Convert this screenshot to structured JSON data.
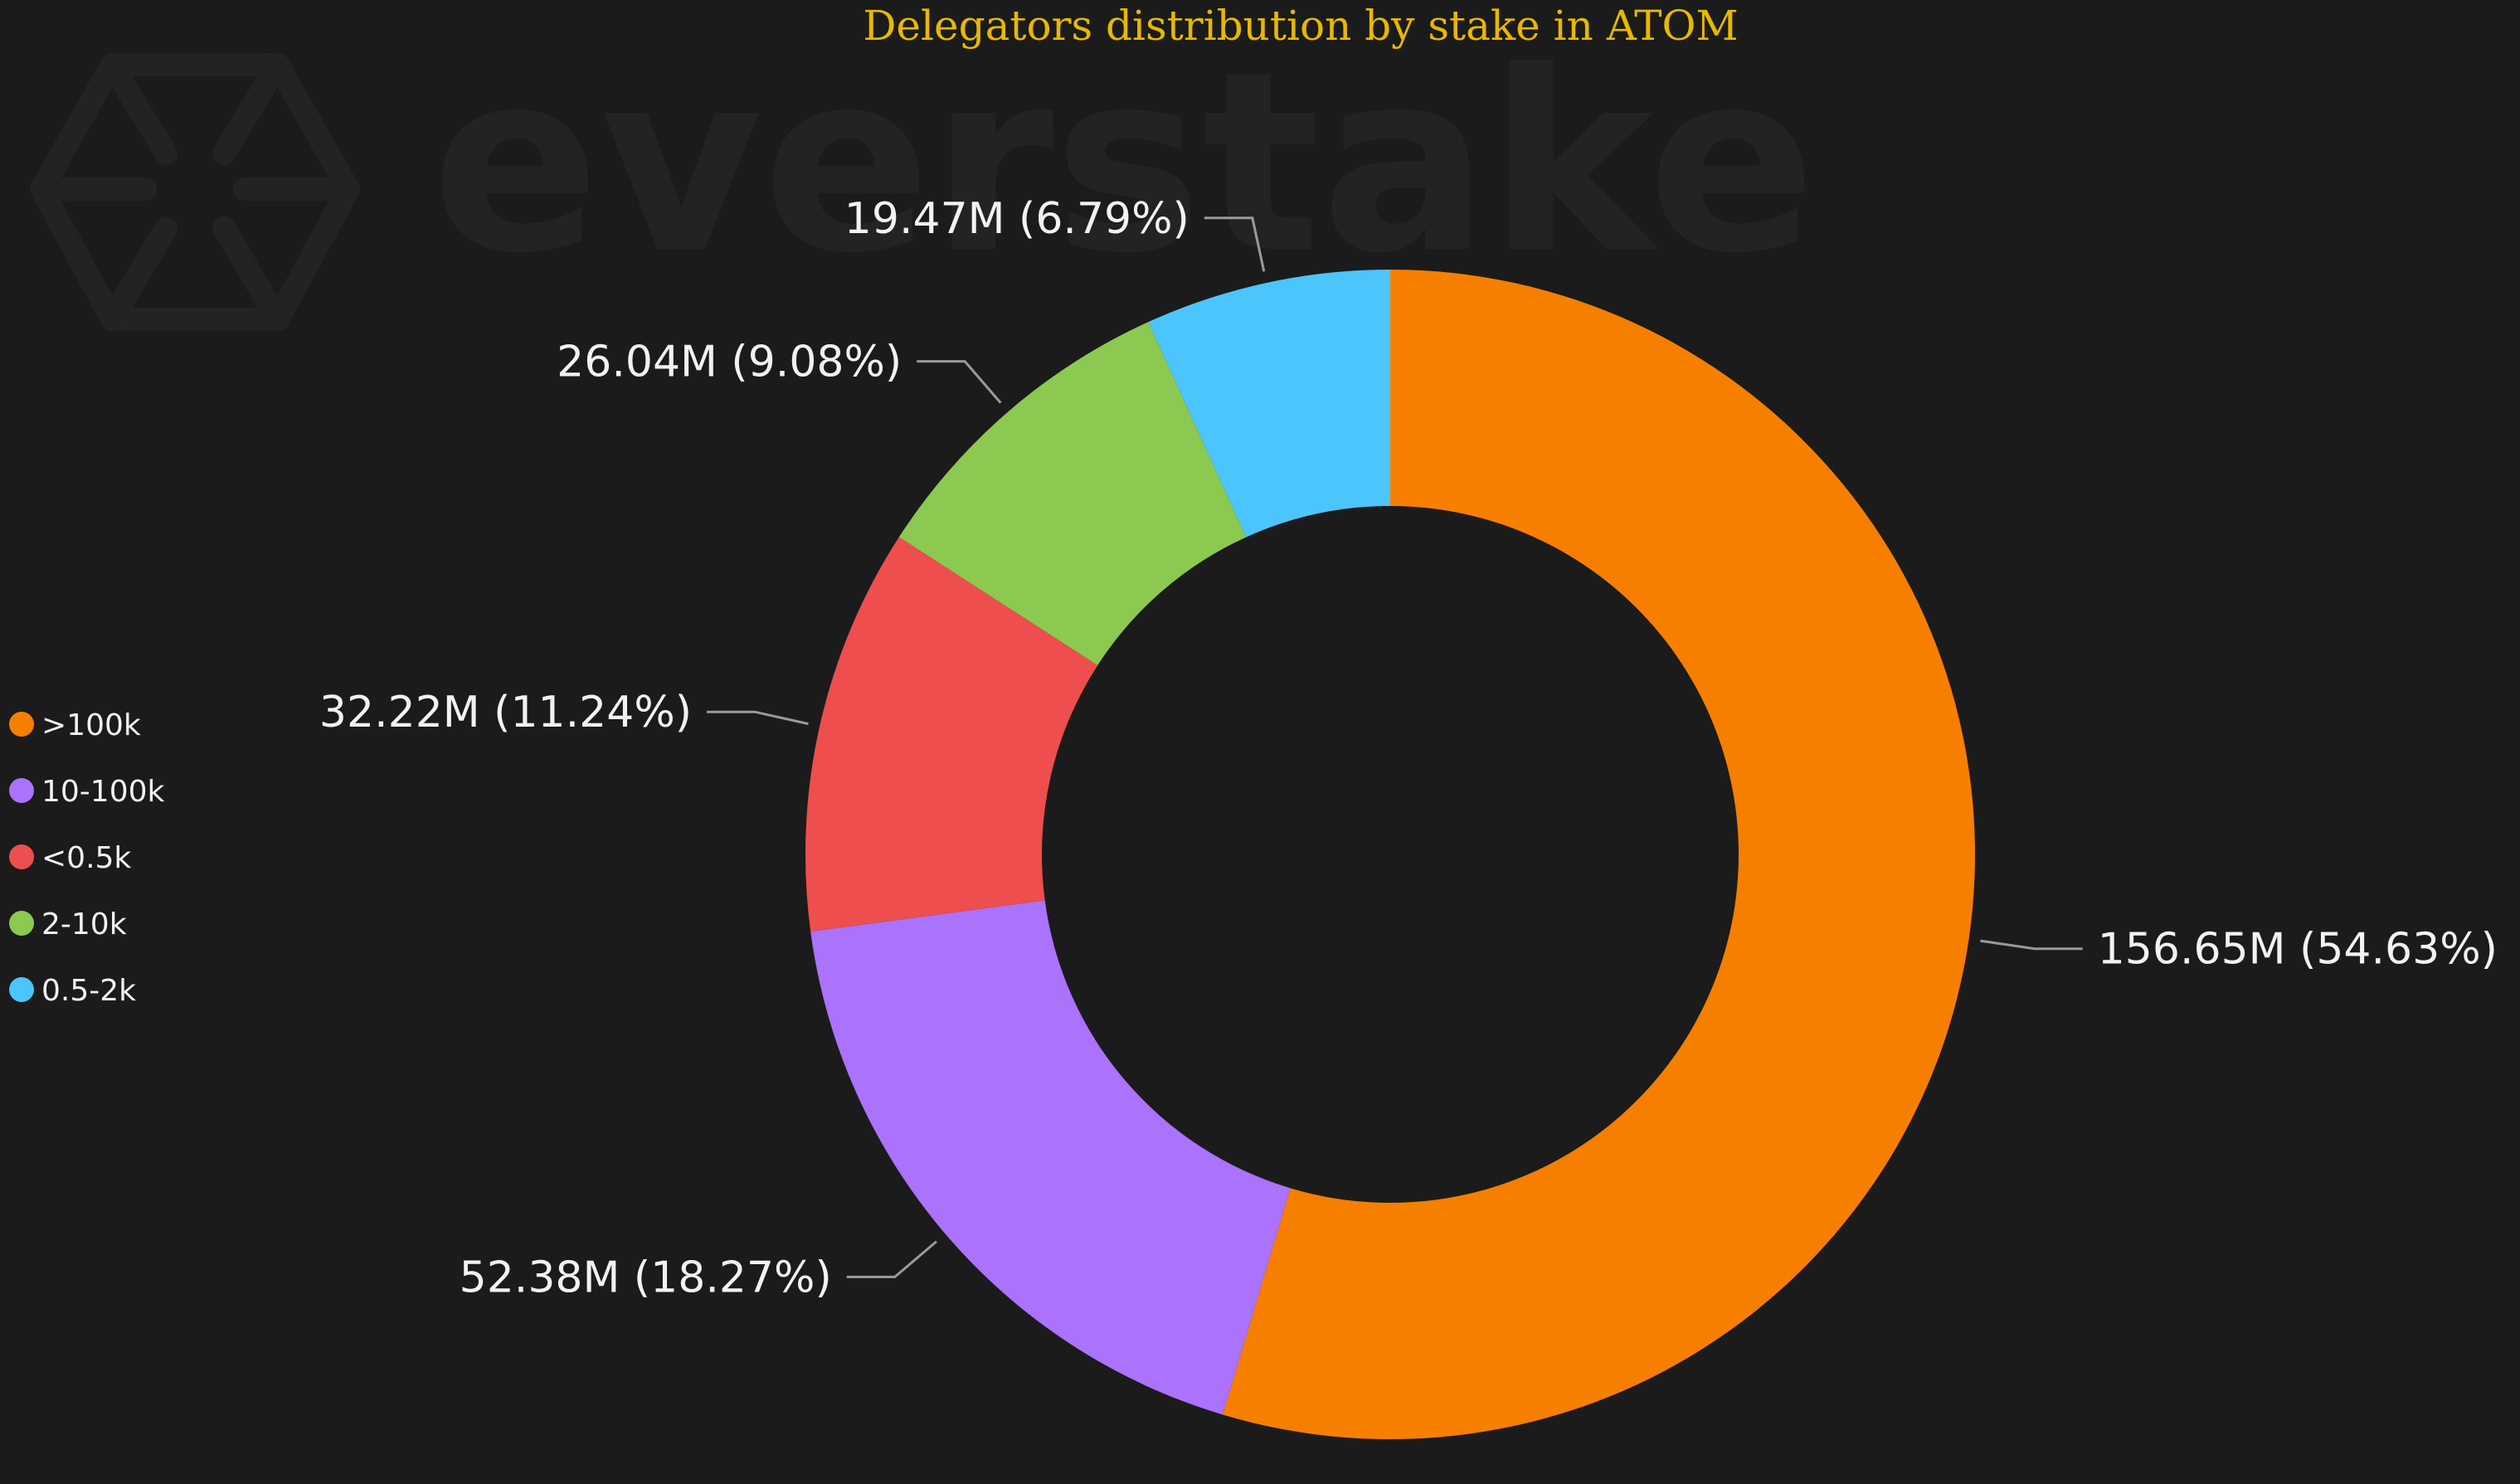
{
  "colors": {
    "background": "#1b1b1b",
    "title": "#e8b800",
    "label_text": "#f2f2f2",
    "leader_line": "#9a9a9a",
    "watermark": "#232323"
  },
  "watermark": {
    "text": "everstake",
    "icon": "everstake-hexagon-logo-icon"
  },
  "chart_data": {
    "type": "pie",
    "donut": true,
    "title": "Delegators distribution by stake in ATOM",
    "unit": "ATOM",
    "legend_position": "left",
    "legend": [
      {
        "label": ">100k",
        "color": "#f77f00"
      },
      {
        "label": "10-100k",
        "color": "#ab72fc"
      },
      {
        "label": "<0.5k",
        "color": "#ee4e4e"
      },
      {
        "label": "2-10k",
        "color": "#8cc950"
      },
      {
        "label": "0.5-2k",
        "color": "#4cc5fd"
      }
    ],
    "slices": [
      {
        "label": ">100k",
        "value": 156.65,
        "display": "156.65M (54.63%)",
        "percent": 54.63,
        "color": "#f77f00"
      },
      {
        "label": "10-100k",
        "value": 52.38,
        "display": "52.38M (18.27%)",
        "percent": 18.27,
        "color": "#ab72fc"
      },
      {
        "label": "<0.5k",
        "value": 32.22,
        "display": "32.22M (11.24%)",
        "percent": 11.24,
        "color": "#ee4e4e"
      },
      {
        "label": "2-10k",
        "value": 26.04,
        "display": "26.04M (9.08%)",
        "percent": 9.08,
        "color": "#8cc950"
      },
      {
        "label": "0.5-2k",
        "value": 19.47,
        "display": "19.47M (6.79%)",
        "percent": 6.79,
        "color": "#4cc5fd"
      }
    ]
  }
}
